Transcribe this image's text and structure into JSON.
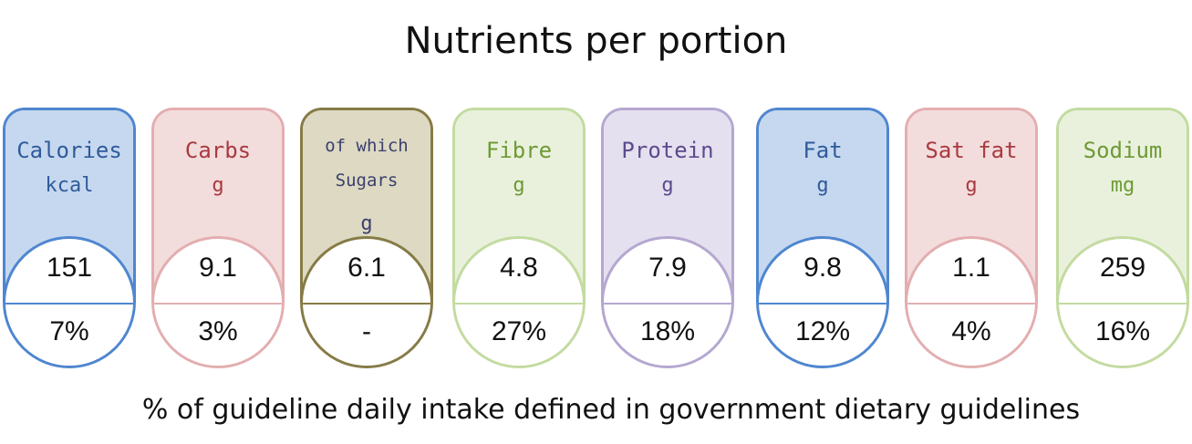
{
  "title": "Nutrients per portion",
  "footer": "% of guideline daily intake defined in government dietary guidelines",
  "cards": [
    {
      "name": "Calories",
      "unit": "kcal",
      "amount": "151",
      "percent": "7%",
      "colors": {
        "border": "#4f86d0",
        "fill": "#c6d8ef",
        "text": "#2e5b9b"
      }
    },
    {
      "name": "Carbs",
      "unit": "g",
      "amount": "9.1",
      "percent": "3%",
      "colors": {
        "border": "#e3aeb0",
        "fill": "#f3dcdc",
        "text": "#a83a3f"
      }
    },
    {
      "name": "of which Sugars",
      "unit": "g",
      "amount": "6.1",
      "percent": "-",
      "colors": {
        "border": "#867b46",
        "fill": "#ddd9c2",
        "text": "#3b3f6e"
      }
    },
    {
      "name": "Fibre",
      "unit": "g",
      "amount": "4.8",
      "percent": "27%",
      "colors": {
        "border": "#c3dba0",
        "fill": "#e9f1dd",
        "text": "#6e9a34"
      }
    },
    {
      "name": "Protein",
      "unit": "g",
      "amount": "7.9",
      "percent": "18%",
      "colors": {
        "border": "#b4a7d0",
        "fill": "#e5e0ef",
        "text": "#5c4a8e"
      }
    },
    {
      "name": "Fat",
      "unit": "g",
      "amount": "9.8",
      "percent": "12%",
      "colors": {
        "border": "#4f86d0",
        "fill": "#c6d8ef",
        "text": "#2e5b9b"
      }
    },
    {
      "name": "Sat fat",
      "unit": "g",
      "amount": "1.1",
      "percent": "4%",
      "colors": {
        "border": "#e3aeb0",
        "fill": "#f3dcdc",
        "text": "#a83a3f"
      }
    },
    {
      "name": "Sodium",
      "unit": "mg",
      "amount": "259",
      "percent": "16%",
      "colors": {
        "border": "#c3dba0",
        "fill": "#e9f1dd",
        "text": "#6e9a34"
      }
    }
  ]
}
